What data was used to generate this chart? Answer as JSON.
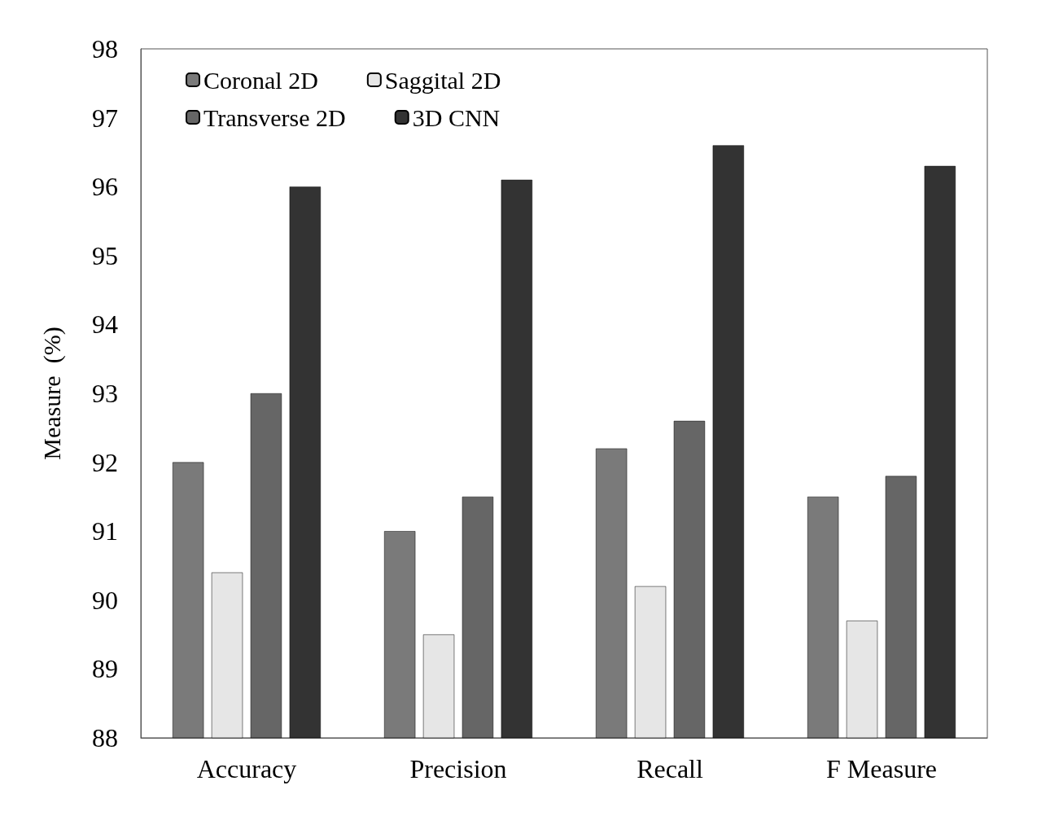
{
  "chart_data": {
    "type": "bar",
    "ylabel": "Measure  (%)",
    "categories": [
      "Accuracy",
      "Precision",
      "Recall",
      "F Measure"
    ],
    "series": [
      {
        "name": "Coronal 2D",
        "color": "#7a7a7a",
        "values": [
          92.0,
          91.0,
          92.2,
          91.5
        ]
      },
      {
        "name": "Saggital 2D",
        "color": "#e6e6e6",
        "values": [
          90.4,
          89.5,
          90.2,
          89.7
        ]
      },
      {
        "name": "Transverse 2D",
        "color": "#666666",
        "values": [
          93.0,
          91.5,
          92.6,
          91.8
        ]
      },
      {
        "name": "3D CNN",
        "color": "#333333",
        "values": [
          96.0,
          96.1,
          96.6,
          96.3
        ]
      }
    ],
    "ylim": [
      88,
      98
    ],
    "yticks": [
      88,
      89,
      90,
      91,
      92,
      93,
      94,
      95,
      96,
      97,
      98
    ],
    "grid": false,
    "legend": "top left"
  }
}
